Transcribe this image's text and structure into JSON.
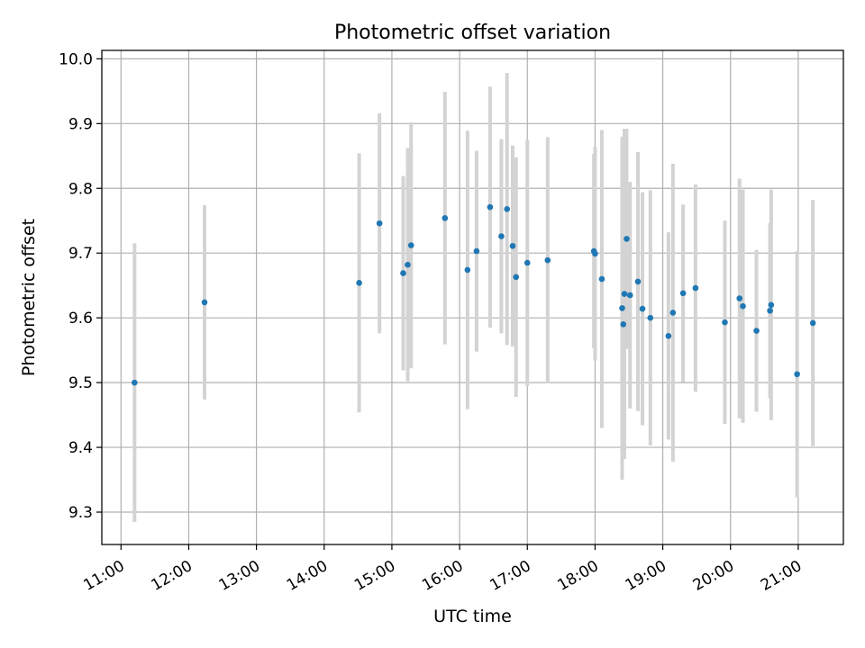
{
  "chart_data": {
    "type": "scatter",
    "title": "Photometric offset variation",
    "xlabel": "UTC time",
    "ylabel": "Photometric offset",
    "grid": true,
    "legend": "none",
    "x_axis_type": "time",
    "xlim": [
      "10:43",
      "21:40"
    ],
    "ylim": [
      9.25,
      10.013
    ],
    "x_ticks": [
      "11:00",
      "12:00",
      "13:00",
      "14:00",
      "15:00",
      "16:00",
      "17:00",
      "18:00",
      "19:00",
      "20:00",
      "21:00"
    ],
    "y_ticks": [
      "9.3",
      "9.4",
      "9.5",
      "9.6",
      "9.7",
      "9.8",
      "9.9",
      "10.0"
    ],
    "colors": {
      "point": "#1f77b4",
      "errorbar": "#d3d3d3",
      "grid": "#b0b0b0"
    },
    "series": [
      {
        "x": [
          "11:12",
          "12:14",
          "14:31",
          "14:49",
          "15:10",
          "15:14",
          "15:17",
          "15:47",
          "16:07",
          "16:15",
          "16:27",
          "16:37",
          "16:42",
          "16:47",
          "16:50",
          "17:00",
          "17:18",
          "17:59",
          "18:00",
          "18:06",
          "18:24",
          "18:25",
          "18:26",
          "18:28",
          "18:31",
          "18:38",
          "18:42",
          "18:49",
          "19:05",
          "19:09",
          "19:18",
          "19:29",
          "19:55",
          "20:08",
          "20:11",
          "20:23",
          "20:35",
          "20:36",
          "20:59",
          "21:13"
        ],
        "y": [
          9.5,
          9.624,
          9.654,
          9.746,
          9.669,
          9.682,
          9.712,
          9.754,
          9.674,
          9.703,
          9.771,
          9.726,
          9.768,
          9.711,
          9.663,
          9.685,
          9.689,
          9.703,
          9.699,
          9.66,
          9.615,
          9.59,
          9.637,
          9.722,
          9.635,
          9.656,
          9.614,
          9.6,
          9.572,
          9.608,
          9.638,
          9.646,
          9.593,
          9.63,
          9.618,
          9.58,
          9.611,
          9.62,
          9.513,
          9.592
        ],
        "yerr": [
          0.215,
          0.15,
          0.2,
          0.17,
          0.15,
          0.18,
          0.19,
          0.195,
          0.215,
          0.155,
          0.186,
          0.15,
          0.21,
          0.155,
          0.185,
          0.19,
          0.19,
          0.15,
          0.165,
          0.23,
          0.265,
          0.2,
          0.255,
          0.17,
          0.175,
          0.2,
          0.18,
          0.197,
          0.16,
          0.23,
          0.137,
          0.16,
          0.157,
          0.185,
          0.18,
          0.125,
          0.135,
          0.178,
          0.19,
          0.19
        ]
      }
    ]
  }
}
